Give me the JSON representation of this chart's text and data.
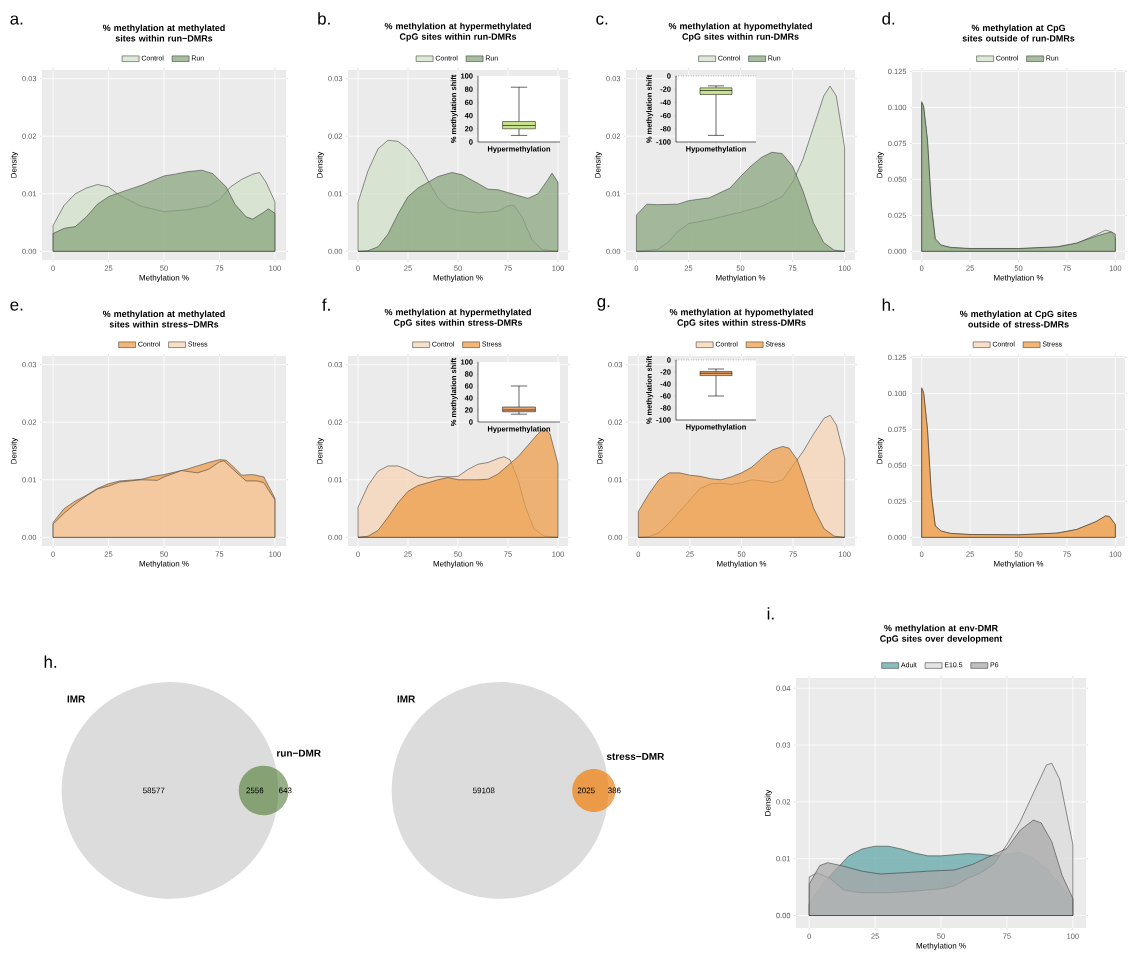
{
  "chart_data": [
    {
      "type": "area",
      "title": "% methylation at methylated sites within run−DMRs",
      "annotations": [
        "a."
      ],
      "xlabel": "Methylation %",
      "ylabel": "Density",
      "xlim": [
        -5,
        105
      ],
      "xticks": [
        0,
        25,
        50,
        75,
        100
      ],
      "ylim": [
        -0.0015,
        0.0315
      ],
      "yticks": [
        {
          "value": 0,
          "label": "0.00"
        },
        {
          "value": 0.01,
          "label": "0.01"
        },
        {
          "value": 0.02,
          "label": "0.02"
        },
        {
          "value": 0.03,
          "label": "0.03"
        }
      ],
      "grid": true,
      "legend": "top",
      "series": [
        {
          "name": "Control",
          "color": "#d1dfc8",
          "x": [
            0,
            5,
            10,
            15,
            20,
            25,
            30,
            40,
            50,
            60,
            70,
            75,
            80,
            85,
            90,
            93,
            96,
            100
          ],
          "values": [
            0.0045,
            0.008,
            0.01,
            0.011,
            0.0116,
            0.0112,
            0.0097,
            0.0078,
            0.0069,
            0.0072,
            0.0079,
            0.009,
            0.0112,
            0.0125,
            0.0134,
            0.0137,
            0.012,
            0.0086
          ]
        },
        {
          "name": "Run",
          "color": "#86a47a",
          "x": [
            0,
            5,
            10,
            15,
            20,
            25,
            30,
            40,
            50,
            55,
            60,
            67,
            72,
            78,
            82,
            87,
            90,
            95,
            97,
            100
          ],
          "values": [
            0.0031,
            0.004,
            0.0043,
            0.006,
            0.0082,
            0.0095,
            0.0102,
            0.0115,
            0.0131,
            0.0134,
            0.0138,
            0.0141,
            0.0135,
            0.0112,
            0.0082,
            0.006,
            0.0056,
            0.0068,
            0.0074,
            0.0066
          ]
        }
      ]
    },
    {
      "type": "area",
      "title": "% methylation at hypermethylated CpG sites within run-DMRs",
      "annotations": [
        "b."
      ],
      "xlabel": "Methylation %",
      "ylabel": "Density",
      "xlim": [
        -5,
        105
      ],
      "xticks": [
        0,
        25,
        50,
        75,
        100
      ],
      "ylim": [
        -0.0015,
        0.0315
      ],
      "yticks": [
        {
          "value": 0,
          "label": "0.00"
        },
        {
          "value": 0.01,
          "label": "0.01"
        },
        {
          "value": 0.02,
          "label": "0.02"
        },
        {
          "value": 0.03,
          "label": "0.03"
        }
      ],
      "grid": true,
      "legend": "top",
      "series": [
        {
          "name": "Control",
          "color": "#d1dfc8",
          "x": [
            0,
            5,
            10,
            15,
            20,
            25,
            30,
            35,
            40,
            45,
            50,
            60,
            70,
            75,
            78,
            82,
            87,
            92,
            100
          ],
          "values": [
            0.0085,
            0.014,
            0.0178,
            0.0193,
            0.0191,
            0.0178,
            0.0155,
            0.0123,
            0.0093,
            0.0076,
            0.0071,
            0.0067,
            0.007,
            0.0079,
            0.008,
            0.006,
            0.002,
            0.0003,
            0
          ]
        },
        {
          "name": "Run",
          "color": "#86a47a",
          "x": [
            0,
            5,
            10,
            15,
            20,
            25,
            30,
            40,
            47,
            52,
            60,
            65,
            70,
            80,
            85,
            90,
            95,
            97,
            100
          ],
          "values": [
            0,
            0.0001,
            0.0008,
            0.003,
            0.0065,
            0.0095,
            0.011,
            0.013,
            0.0137,
            0.0133,
            0.0118,
            0.0108,
            0.0107,
            0.0097,
            0.0092,
            0.01,
            0.0125,
            0.0136,
            0.012
          ]
        }
      ]
    },
    {
      "type": "box",
      "categories": [
        "Hypermethylation"
      ],
      "ylabel": "% methylation shift",
      "ylim": [
        0,
        100
      ],
      "yticks": [
        0,
        20,
        40,
        60,
        80,
        100
      ],
      "color": "#c8e38f",
      "boxes": [
        {
          "low": 10,
          "q1": 20,
          "median": 25,
          "q3": 31,
          "high": 83
        }
      ]
    },
    {
      "type": "area",
      "title": "% methylation at hypomethylated CpG sites within run-DMRs",
      "annotations": [
        "c."
      ],
      "xlabel": "Methylation %",
      "ylabel": "Density",
      "xlim": [
        -5,
        105
      ],
      "xticks": [
        0,
        25,
        50,
        75,
        100
      ],
      "ylim": [
        -0.0015,
        0.0315
      ],
      "yticks": [
        {
          "value": 0,
          "label": "0.00"
        },
        {
          "value": 0.01,
          "label": "0.01"
        },
        {
          "value": 0.02,
          "label": "0.02"
        },
        {
          "value": 0.03,
          "label": "0.03"
        }
      ],
      "grid": true,
      "legend": "top",
      "series": [
        {
          "name": "Control",
          "color": "#d1dfc8",
          "x": [
            0,
            10,
            15,
            20,
            25,
            35,
            50,
            60,
            70,
            75,
            80,
            85,
            90,
            93,
            96,
            100
          ],
          "values": [
            0,
            0.0003,
            0.0015,
            0.0035,
            0.0048,
            0.0055,
            0.0068,
            0.0078,
            0.0095,
            0.012,
            0.016,
            0.0215,
            0.027,
            0.0287,
            0.027,
            0.018
          ]
        },
        {
          "name": "Run",
          "color": "#86a47a",
          "x": [
            0,
            5,
            10,
            20,
            25,
            35,
            45,
            50,
            55,
            60,
            65,
            70,
            75,
            80,
            85,
            90,
            95,
            100
          ],
          "values": [
            0.0063,
            0.0082,
            0.0081,
            0.0082,
            0.0088,
            0.0093,
            0.011,
            0.013,
            0.0148,
            0.0163,
            0.0172,
            0.017,
            0.0148,
            0.0105,
            0.005,
            0.0015,
            0.0002,
            0
          ]
        }
      ]
    },
    {
      "type": "box",
      "categories": [
        "Hypomethylation"
      ],
      "ylabel": "% methylation shift",
      "ylim": [
        -100,
        0
      ],
      "yticks": [
        -100,
        -80,
        -60,
        -40,
        -20,
        0
      ],
      "color": "#c8e38f",
      "boxes": [
        {
          "low": -90,
          "q1": -28,
          "median": -22,
          "q3": -18,
          "high": -15
        }
      ],
      "ref_lines": [
        {
          "axis": "y",
          "value": 0,
          "line_style": "dotted"
        }
      ]
    },
    {
      "type": "area",
      "title": "% methylation at CpG sites outside of run-DMRs",
      "annotations": [
        "d."
      ],
      "xlabel": "Methylation %",
      "ylabel": "Density",
      "xlim": [
        -5,
        105
      ],
      "xticks": [
        0,
        25,
        50,
        75,
        100
      ],
      "ylim": [
        -0.006,
        0.126
      ],
      "yticks": [
        {
          "value": 0,
          "label": "0.000"
        },
        {
          "value": 0.025,
          "label": "0.025"
        },
        {
          "value": 0.05,
          "label": "0.050"
        },
        {
          "value": 0.075,
          "label": "0.075"
        },
        {
          "value": 0.1,
          "label": "0.100"
        },
        {
          "value": 0.125,
          "label": "0.125"
        }
      ],
      "grid": true,
      "legend": "top",
      "series": [
        {
          "name": "Control",
          "color": "#d1dfc8",
          "x": [
            0,
            1,
            3,
            5,
            7,
            10,
            15,
            25,
            50,
            70,
            80,
            90,
            95,
            98,
            100
          ],
          "values": [
            0.103,
            0.1,
            0.075,
            0.03,
            0.008,
            0.004,
            0.0025,
            0.0018,
            0.0018,
            0.003,
            0.0055,
            0.0115,
            0.0148,
            0.0135,
            0.009
          ]
        },
        {
          "name": "Run",
          "color": "#86a47a",
          "x": [
            0,
            1,
            3,
            5,
            7,
            10,
            15,
            25,
            50,
            70,
            80,
            90,
            95,
            98,
            100
          ],
          "values": [
            0.104,
            0.101,
            0.078,
            0.033,
            0.009,
            0.0045,
            0.0028,
            0.002,
            0.002,
            0.0032,
            0.0058,
            0.0105,
            0.0125,
            0.0135,
            0.012
          ]
        }
      ]
    },
    {
      "type": "area",
      "title": "% methylation at methylated sites within stress−DMRs",
      "annotations": [
        "e."
      ],
      "xlabel": "Methylation %",
      "ylabel": "Density",
      "xlim": [
        -5,
        105
      ],
      "xticks": [
        0,
        25,
        50,
        75,
        100
      ],
      "ylim": [
        -0.0015,
        0.0315
      ],
      "yticks": [
        {
          "value": 0,
          "label": "0.00"
        },
        {
          "value": 0.01,
          "label": "0.01"
        },
        {
          "value": 0.02,
          "label": "0.02"
        },
        {
          "value": 0.03,
          "label": "0.03"
        }
      ],
      "grid": true,
      "legend": "top",
      "series": [
        {
          "name": "Control",
          "color": "#ec9a44",
          "x": [
            0,
            5,
            10,
            15,
            20,
            25,
            30,
            40,
            45,
            50,
            60,
            70,
            75,
            78,
            82,
            85,
            90,
            95,
            100
          ],
          "values": [
            0.0026,
            0.005,
            0.0063,
            0.0073,
            0.0085,
            0.0093,
            0.0098,
            0.0101,
            0.0106,
            0.0109,
            0.0118,
            0.013,
            0.0135,
            0.0134,
            0.012,
            0.0108,
            0.0109,
            0.0105,
            0.0068
          ]
        },
        {
          "name": "Stress",
          "color": "#f6d2b2",
          "x": [
            0,
            5,
            10,
            15,
            20,
            25,
            30,
            40,
            47,
            50,
            58,
            65,
            70,
            75,
            77,
            82,
            87,
            92,
            95,
            100
          ],
          "values": [
            0.0023,
            0.0042,
            0.0058,
            0.0072,
            0.0084,
            0.0089,
            0.0096,
            0.01,
            0.0099,
            0.0105,
            0.0116,
            0.0112,
            0.0118,
            0.0131,
            0.0133,
            0.0115,
            0.0098,
            0.0098,
            0.0095,
            0.0065
          ]
        }
      ]
    },
    {
      "type": "area",
      "title": "% methylation at hypermethylated CpG sites within stress-DMRs",
      "annotations": [
        "f."
      ],
      "xlabel": "Methylation %",
      "ylabel": "Density",
      "xlim": [
        -5,
        105
      ],
      "xticks": [
        0,
        25,
        50,
        75,
        100
      ],
      "ylim": [
        -0.0015,
        0.0315
      ],
      "yticks": [
        {
          "value": 0,
          "label": "0.00"
        },
        {
          "value": 0.01,
          "label": "0.01"
        },
        {
          "value": 0.02,
          "label": "0.02"
        },
        {
          "value": 0.03,
          "label": "0.03"
        }
      ],
      "grid": true,
      "legend": "top",
      "series": [
        {
          "name": "Control",
          "color": "#f6d2b2",
          "x": [
            0,
            5,
            10,
            15,
            20,
            25,
            30,
            35,
            40,
            45,
            50,
            55,
            60,
            65,
            70,
            73,
            76,
            80,
            84,
            88,
            93,
            100
          ],
          "values": [
            0.0052,
            0.009,
            0.0115,
            0.0124,
            0.0124,
            0.0117,
            0.0107,
            0.0103,
            0.0106,
            0.0105,
            0.0106,
            0.0118,
            0.0127,
            0.013,
            0.0137,
            0.014,
            0.0135,
            0.01,
            0.005,
            0.0015,
            0.0002,
            0
          ]
        },
        {
          "name": "Stress",
          "color": "#ec9a44",
          "x": [
            0,
            5,
            10,
            15,
            20,
            25,
            30,
            40,
            45,
            50,
            60,
            65,
            70,
            80,
            85,
            90,
            93,
            96,
            100
          ],
          "values": [
            0,
            0.0002,
            0.0012,
            0.0035,
            0.006,
            0.008,
            0.009,
            0.01,
            0.0104,
            0.01,
            0.01,
            0.0101,
            0.011,
            0.014,
            0.016,
            0.018,
            0.019,
            0.018,
            0.0127
          ]
        }
      ]
    },
    {
      "type": "box",
      "categories": [
        "Hypermethylation"
      ],
      "ylabel": "% methylation shift",
      "ylim": [
        0,
        100
      ],
      "yticks": [
        0,
        20,
        40,
        60,
        80,
        100
      ],
      "color": "#e9a36b",
      "boxes": [
        {
          "low": 13,
          "q1": 17,
          "median": 20,
          "q3": 25,
          "high": 60
        }
      ]
    },
    {
      "type": "area",
      "title": "% methylation at hypomethylated CpG sites within stress-DMRs",
      "annotations": [
        "g."
      ],
      "xlabel": "Methylation %",
      "ylabel": "Density",
      "xlim": [
        -5,
        105
      ],
      "xticks": [
        0,
        25,
        50,
        75,
        100
      ],
      "ylim": [
        -0.0015,
        0.0315
      ],
      "yticks": [
        {
          "value": 0,
          "label": "0.00"
        },
        {
          "value": 0.01,
          "label": "0.01"
        },
        {
          "value": 0.02,
          "label": "0.02"
        },
        {
          "value": 0.03,
          "label": "0.03"
        }
      ],
      "grid": true,
      "legend": "top",
      "series": [
        {
          "name": "Control",
          "color": "#f6d2b2",
          "x": [
            0,
            5,
            10,
            15,
            20,
            25,
            30,
            35,
            40,
            45,
            50,
            55,
            60,
            65,
            70,
            75,
            80,
            85,
            90,
            93,
            96,
            100
          ],
          "values": [
            0,
            0.0001,
            0.0008,
            0.0025,
            0.0045,
            0.0065,
            0.0085,
            0.0093,
            0.0094,
            0.0092,
            0.0095,
            0.01,
            0.0098,
            0.0095,
            0.01,
            0.0125,
            0.015,
            0.018,
            0.0207,
            0.0212,
            0.0195,
            0.0138
          ]
        },
        {
          "name": "Stress",
          "color": "#ec9a44",
          "x": [
            0,
            5,
            10,
            15,
            20,
            25,
            30,
            35,
            40,
            45,
            50,
            55,
            60,
            65,
            70,
            73,
            77,
            80,
            85,
            90,
            95,
            100
          ],
          "values": [
            0.0045,
            0.0075,
            0.01,
            0.0112,
            0.0112,
            0.0108,
            0.0106,
            0.0102,
            0.01,
            0.0105,
            0.0112,
            0.0122,
            0.0138,
            0.0152,
            0.0158,
            0.0155,
            0.0135,
            0.0105,
            0.005,
            0.0015,
            0.0002,
            0
          ]
        }
      ]
    },
    {
      "type": "box",
      "categories": [
        "Hypomethylation"
      ],
      "ylabel": "% methylation shift",
      "ylim": [
        -100,
        0
      ],
      "yticks": [
        -100,
        -80,
        -60,
        -40,
        -20,
        0
      ],
      "color": "#e9a36b",
      "boxes": [
        {
          "low": -60,
          "q1": -26,
          "median": -22,
          "q3": -19,
          "high": -15
        }
      ],
      "ref_lines": [
        {
          "axis": "y",
          "value": 0,
          "line_style": "dotted"
        }
      ]
    },
    {
      "type": "area",
      "title": "% methylation at CpG sites outside of stress-DMRs",
      "annotations": [
        "h."
      ],
      "xlabel": "Methylation %",
      "ylabel": "Density",
      "xlim": [
        -5,
        105
      ],
      "xticks": [
        0,
        25,
        50,
        75,
        100
      ],
      "ylim": [
        -0.006,
        0.126
      ],
      "yticks": [
        {
          "value": 0,
          "label": "0.000"
        },
        {
          "value": 0.025,
          "label": "0.025"
        },
        {
          "value": 0.05,
          "label": "0.050"
        },
        {
          "value": 0.075,
          "label": "0.075"
        },
        {
          "value": 0.1,
          "label": "0.100"
        },
        {
          "value": 0.125,
          "label": "0.125"
        }
      ],
      "grid": true,
      "legend": "top",
      "series": [
        {
          "name": "Control",
          "color": "#f6d2b2",
          "x": [
            0,
            1,
            3,
            5,
            7,
            10,
            15,
            25,
            50,
            70,
            80,
            90,
            95,
            97,
            100
          ],
          "values": [
            0.103,
            0.1,
            0.074,
            0.029,
            0.008,
            0.0042,
            0.0026,
            0.0019,
            0.0017,
            0.0029,
            0.0054,
            0.0108,
            0.0148,
            0.0143,
            0.0088
          ]
        },
        {
          "name": "Stress",
          "color": "#ec9a44",
          "x": [
            0,
            1,
            3,
            5,
            7,
            10,
            15,
            25,
            50,
            70,
            80,
            90,
            95,
            97,
            100
          ],
          "values": [
            0.104,
            0.101,
            0.075,
            0.03,
            0.008,
            0.0045,
            0.0028,
            0.002,
            0.0018,
            0.003,
            0.0055,
            0.011,
            0.015,
            0.0145,
            0.009
          ]
        }
      ]
    },
    {
      "type": "other",
      "annotations": [
        "h.",
        "IMR",
        "run−DMR"
      ],
      "categories": [
        null,
        null,
        null
      ],
      "values": [
        58577,
        2556,
        643
      ],
      "colors": [
        "#dcdcdc",
        "#86a275",
        "#97b08a"
      ],
      "data_labels": true
    },
    {
      "type": "other",
      "annotations": [
        "IMR",
        "stress−DMR"
      ],
      "categories": [
        null,
        null,
        null
      ],
      "values": [
        59108,
        2025,
        386
      ],
      "colors": [
        "#dcdcdc",
        "#eb9a48",
        "#f0a75e"
      ],
      "data_labels": true
    },
    {
      "type": "area",
      "title": "% methylation at env-DMR CpG sites over development",
      "annotations": [
        "i."
      ],
      "xlabel": "Methylation %",
      "ylabel": "Density",
      "xlim": [
        -5,
        105
      ],
      "xticks": [
        0,
        25,
        50,
        75,
        100
      ],
      "ylim": [
        -0.0022,
        0.0418
      ],
      "yticks": [
        {
          "value": 0,
          "label": "0.00"
        },
        {
          "value": 0.01,
          "label": "0.01"
        },
        {
          "value": 0.02,
          "label": "0.02"
        },
        {
          "value": 0.03,
          "label": "0.03"
        },
        {
          "value": 0.04,
          "label": "0.04"
        }
      ],
      "grid": true,
      "legend": "top",
      "series": [
        {
          "name": "Adult",
          "color": "#5da3a5",
          "x": [
            0,
            5,
            10,
            15,
            20,
            25,
            30,
            35,
            40,
            45,
            50,
            55,
            60,
            65,
            70,
            75,
            80,
            85,
            90,
            95,
            100
          ],
          "values": [
            0.002,
            0.0055,
            0.008,
            0.0105,
            0.0117,
            0.0122,
            0.0122,
            0.0117,
            0.011,
            0.0105,
            0.0105,
            0.0107,
            0.0109,
            0.0108,
            0.0105,
            0.0108,
            0.0111,
            0.0102,
            0.0082,
            0.0055,
            0.0028
          ]
        },
        {
          "name": "E10.5",
          "color": "#dadada",
          "x": [
            0,
            3,
            8,
            13,
            20,
            30,
            40,
            50,
            55,
            60,
            65,
            70,
            75,
            80,
            85,
            90,
            92,
            95,
            100
          ],
          "values": [
            0.0068,
            0.0075,
            0.0065,
            0.0045,
            0.004,
            0.004,
            0.0043,
            0.0047,
            0.0052,
            0.0065,
            0.0075,
            0.009,
            0.0125,
            0.0165,
            0.0215,
            0.0265,
            0.0268,
            0.024,
            0.0125
          ]
        },
        {
          "name": "P6",
          "color": "#a6a6a6",
          "x": [
            0,
            4,
            7,
            12,
            20,
            27,
            35,
            45,
            55,
            62,
            68,
            75,
            80,
            85,
            88,
            92,
            96,
            100
          ],
          "values": [
            0.0055,
            0.0088,
            0.0093,
            0.0088,
            0.0078,
            0.0073,
            0.0075,
            0.0078,
            0.008,
            0.009,
            0.0103,
            0.0118,
            0.015,
            0.0168,
            0.0163,
            0.013,
            0.007,
            0.003
          ]
        }
      ]
    }
  ]
}
